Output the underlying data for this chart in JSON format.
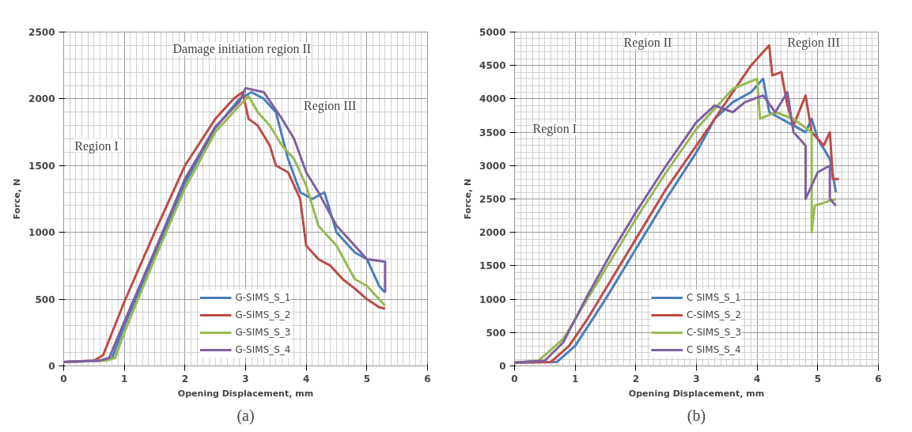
{
  "chart_data": [
    {
      "type": "line",
      "xlabel": "Opening Displacement, mm",
      "ylabel": "Force, N",
      "xlim": [
        0,
        6
      ],
      "ylim": [
        0,
        2500
      ],
      "xticks": [
        0,
        1,
        2,
        3,
        4,
        5,
        6
      ],
      "yticks": [
        0,
        500,
        1000,
        1500,
        2000,
        2500
      ],
      "grid": true,
      "legend": "bottom",
      "marker": "none",
      "line_style": "solid",
      "annotations": [
        "Region I",
        "Damage initiation region II",
        "Region III",
        "(a)"
      ],
      "series": [
        {
          "name": "G-SIMS_S_1",
          "color": "#4a7ebb",
          "x": [
            0,
            0.6,
            0.8,
            1,
            1.5,
            2,
            2.5,
            2.9,
            3.1,
            3.3,
            3.5,
            3.7,
            3.9,
            4.1,
            4.3,
            4.5,
            4.8,
            5.0,
            5.2,
            5.3
          ],
          "values": [
            30,
            40,
            60,
            300,
            830,
            1370,
            1780,
            2000,
            2050,
            2000,
            1900,
            1550,
            1300,
            1250,
            1300,
            1000,
            850,
            800,
            600,
            550
          ]
        },
        {
          "name": "G-SIMS_S_2",
          "color": "#be4b48",
          "x": [
            0,
            0.5,
            0.65,
            1,
            1.5,
            2,
            2.5,
            2.8,
            2.95,
            3.05,
            3.2,
            3.4,
            3.5,
            3.7,
            3.9,
            4.0,
            4.2,
            4.4,
            4.6,
            4.8,
            5.0,
            5.2,
            5.3
          ],
          "values": [
            30,
            40,
            80,
            480,
            1000,
            1500,
            1850,
            2000,
            2050,
            1850,
            1800,
            1650,
            1500,
            1450,
            1250,
            900,
            800,
            750,
            650,
            580,
            500,
            440,
            430
          ]
        },
        {
          "name": "G-SIMS_S_3",
          "color": "#98b954",
          "x": [
            0,
            0.7,
            0.85,
            1,
            1.5,
            2,
            2.5,
            2.9,
            3.05,
            3.2,
            3.4,
            3.6,
            3.8,
            4.0,
            4.2,
            4.5,
            4.8,
            5.0,
            5.2,
            5.3
          ],
          "values": [
            30,
            40,
            60,
            250,
            800,
            1330,
            1750,
            1950,
            2020,
            1900,
            1800,
            1650,
            1550,
            1350,
            1050,
            900,
            650,
            600,
            500,
            450
          ]
        },
        {
          "name": "G-SIMS_S_4",
          "color": "#7d60a0",
          "x": [
            0,
            0.6,
            0.75,
            1,
            1.5,
            2,
            2.5,
            2.9,
            3.0,
            3.3,
            3.6,
            3.8,
            4.0,
            4.2,
            4.5,
            4.8,
            5.0,
            5.3,
            5.3
          ],
          "values": [
            30,
            40,
            60,
            330,
            860,
            1400,
            1790,
            1980,
            2080,
            2050,
            1850,
            1700,
            1450,
            1300,
            1050,
            900,
            800,
            780,
            550
          ]
        }
      ]
    },
    {
      "type": "line",
      "xlabel": "Opening Displacement, mm",
      "ylabel": "Force, N",
      "xlim": [
        0,
        6
      ],
      "ylim": [
        0,
        5000
      ],
      "xticks": [
        0,
        1,
        2,
        3,
        4,
        5,
        6
      ],
      "yticks": [
        0,
        500,
        1000,
        1500,
        2000,
        2500,
        3000,
        3500,
        4000,
        4500,
        5000
      ],
      "grid": true,
      "legend": "bottom",
      "marker": "none",
      "line_style": "solid",
      "annotations": [
        "Region I",
        "Region II",
        "Region III",
        "(b)"
      ],
      "series": [
        {
          "name": "C SIMS_S_1",
          "color": "#4a7ebb",
          "x": [
            0,
            0.7,
            1.0,
            1.5,
            2,
            2.5,
            3,
            3.3,
            3.6,
            3.9,
            4.1,
            4.2,
            4.4,
            4.6,
            4.8,
            4.9,
            5.0,
            5.2,
            5.3
          ],
          "values": [
            50,
            60,
            300,
            1000,
            1750,
            2500,
            3200,
            3700,
            3950,
            4100,
            4300,
            3800,
            3700,
            3600,
            3500,
            3700,
            3400,
            3100,
            2600
          ]
        },
        {
          "name": "C-SIMS_S_2",
          "color": "#be4b48",
          "x": [
            0,
            0.6,
            0.9,
            1.2,
            1.5,
            2,
            2.5,
            3,
            3.3,
            3.6,
            3.9,
            4.1,
            4.2,
            4.25,
            4.4,
            4.5,
            4.6,
            4.8,
            4.9,
            5.1,
            5.2,
            5.25,
            5.35
          ],
          "values": [
            50,
            60,
            300,
            700,
            1150,
            1900,
            2650,
            3300,
            3700,
            4100,
            4500,
            4700,
            4800,
            4350,
            4400,
            3900,
            3600,
            4050,
            3500,
            3300,
            3500,
            2800,
            2800
          ]
        },
        {
          "name": "C-SIMS_S_3",
          "color": "#98b954",
          "x": [
            0,
            0.4,
            0.8,
            1.2,
            1.6,
            2,
            2.5,
            3,
            3.3,
            3.6,
            4.0,
            4.05,
            4.3,
            4.6,
            4.9,
            4.9,
            4.95,
            5.3
          ],
          "values": [
            50,
            80,
            400,
            1000,
            1600,
            2200,
            2900,
            3550,
            3850,
            4150,
            4300,
            3700,
            3800,
            3700,
            3500,
            2000,
            2400,
            2500
          ]
        },
        {
          "name": "C SIMS_S_4",
          "color": "#7d60a0",
          "x": [
            0,
            0.5,
            0.8,
            1.2,
            1.6,
            2,
            2.5,
            3,
            3.3,
            3.6,
            3.8,
            4.1,
            4.3,
            4.5,
            4.6,
            4.8,
            4.8,
            5.0,
            5.2,
            5.2,
            5.3
          ],
          "values": [
            50,
            80,
            350,
            1050,
            1700,
            2300,
            3000,
            3650,
            3900,
            3800,
            3950,
            4050,
            3800,
            4100,
            3500,
            3300,
            2500,
            2900,
            3000,
            2500,
            2400
          ]
        }
      ]
    }
  ]
}
